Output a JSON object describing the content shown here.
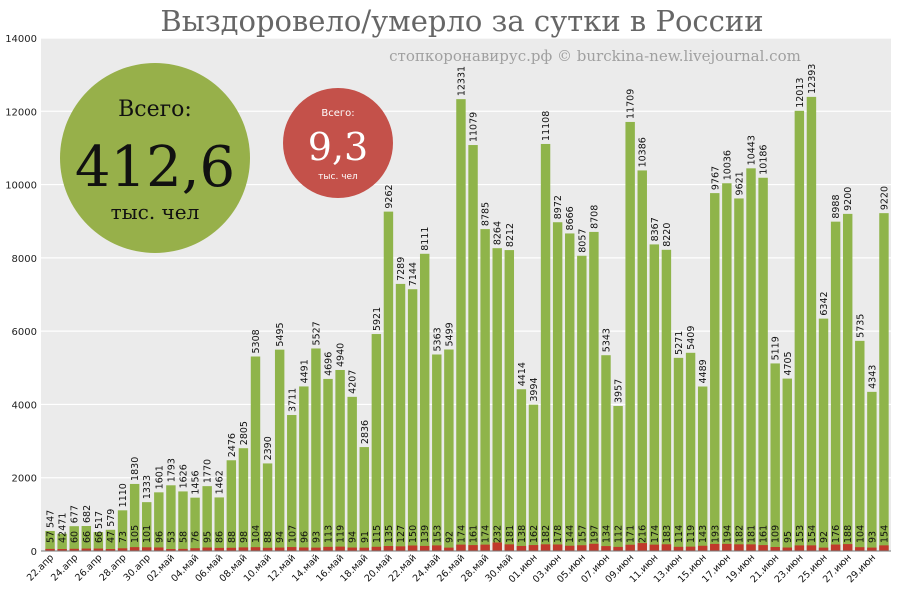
{
  "chart_data": {
    "type": "bar",
    "title": "Выздоровело/умерло за сутки в России",
    "subtitle": "стопкоронавирус.рф © burckina-new.livejournal.com",
    "ylim": [
      0,
      14000
    ],
    "y_ticks": [
      "0",
      "2000",
      "4000",
      "6000",
      "8000",
      "10000",
      "12000",
      "14000"
    ],
    "x_labels": [
      "22.апр",
      "24.апр",
      "26.апр",
      "28.апр",
      "30.апр",
      "02.май",
      "04.май",
      "06.май",
      "08.май",
      "10.май",
      "12.май",
      "14.май",
      "16.май",
      "18.май",
      "20.май",
      "22.май",
      "24.май",
      "26.май",
      "28.май",
      "30.май",
      "01.июн",
      "03.июн",
      "05.июн",
      "07.июн",
      "09.июн",
      "11.июн",
      "13.июн",
      "15.июн",
      "17.июн",
      "19.июн",
      "21.июн",
      "23.июн",
      "25.июн",
      "27.июн",
      "29.июн"
    ],
    "series": [
      {
        "name": "выздоровело",
        "color": "#8fb44a",
        "values": [
          547,
          471,
          677,
          682,
          517,
          579,
          1110,
          1830,
          1333,
          1601,
          1793,
          1626,
          1456,
          1770,
          1462,
          2476,
          2805,
          5308,
          2390,
          5495,
          3711,
          4491,
          5527,
          4696,
          4940,
          4207,
          2836,
          5921,
          9262,
          7289,
          7144,
          8111,
          5363,
          5499,
          12331,
          11079,
          8785,
          8264,
          8212,
          4414,
          3994,
          11108,
          8972,
          8666,
          8057,
          8708,
          5343,
          3957,
          11709,
          10386,
          8367,
          8220,
          5271,
          5409,
          4489,
          9767,
          10036,
          9621,
          10443,
          10186,
          5119,
          4705,
          12013,
          12393,
          6342,
          8988,
          9200,
          5735,
          4343,
          9220
        ]
      },
      {
        "name": "умерло",
        "color": "#c0392b",
        "values": [
          57,
          42,
          60,
          66,
          66,
          47,
          73,
          105,
          101,
          96,
          53,
          58,
          76,
          95,
          86,
          88,
          98,
          104,
          88,
          94,
          107,
          96,
          93,
          113,
          119,
          94,
          91,
          115,
          135,
          127,
          150,
          139,
          153,
          92,
          174,
          161,
          174,
          232,
          181,
          138,
          162,
          182,
          178,
          144,
          157,
          197,
          134,
          112,
          171,
          216,
          174,
          183,
          114,
          119,
          143,
          193,
          194,
          182,
          181,
          161,
          109,
          95,
          153,
          154,
          92,
          176,
          188,
          104,
          93,
          154
        ]
      }
    ],
    "grid": true
  },
  "bubble_recovered": {
    "label_top": "Всего:",
    "value": "412,6",
    "label_bottom": "тыс. чел",
    "color": "#97b04a"
  },
  "bubble_died": {
    "label_top": "Всего:",
    "value": "9,3",
    "label_bottom": "тыс. чел",
    "color": "#c4514a"
  }
}
